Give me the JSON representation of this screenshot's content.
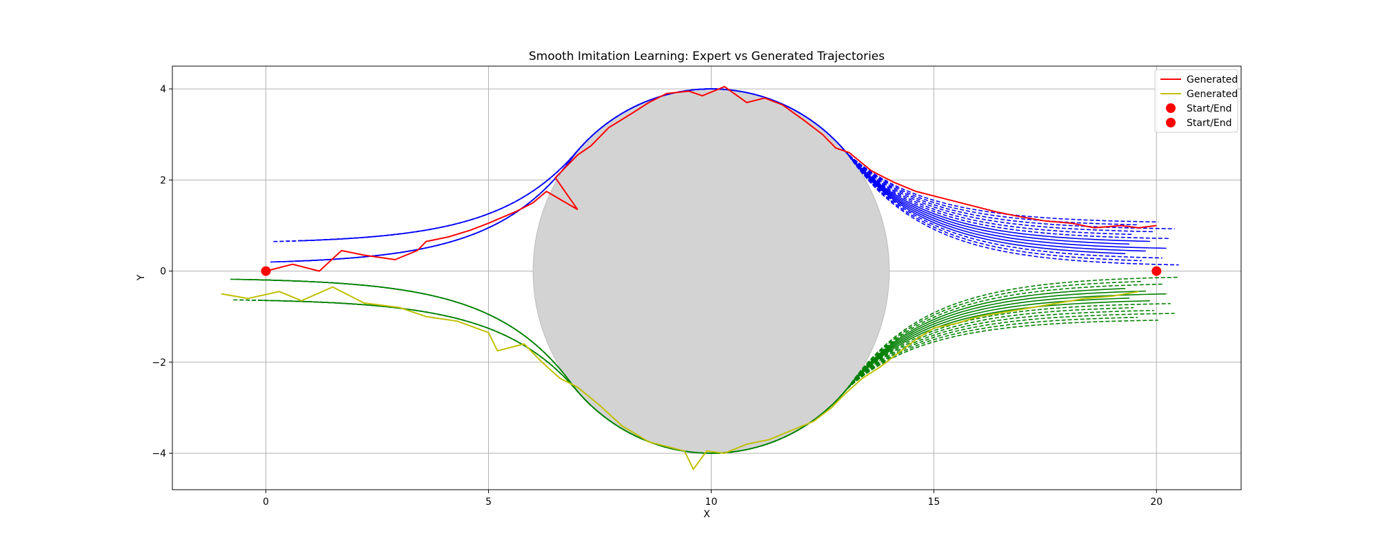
{
  "chart_data": {
    "type": "line",
    "title": "Smooth Imitation Learning: Expert vs Generated Trajectories",
    "xlabel": "X",
    "ylabel": "Y",
    "xlim": [
      -2.1,
      21.9
    ],
    "ylim": [
      -4.8,
      4.5
    ],
    "xticks": [
      0,
      5,
      10,
      15,
      20
    ],
    "yticks": [
      -4,
      -2,
      0,
      2,
      4
    ],
    "xtick_labels": [
      "0",
      "5",
      "10",
      "15",
      "20"
    ],
    "ytick_labels": [
      "−4",
      "−2",
      "0",
      "2",
      "4"
    ],
    "grid": true,
    "legend_position": "top-right",
    "legend": [
      {
        "label": "Generated",
        "kind": "line",
        "color": "#ff0000"
      },
      {
        "label": "Generated",
        "kind": "line",
        "color": "#bfbf00"
      },
      {
        "label": "Start/End",
        "kind": "marker",
        "color": "#ff0000"
      },
      {
        "label": "Start/End",
        "kind": "marker",
        "color": "#ff0000"
      }
    ],
    "obstacle": {
      "type": "circle",
      "center": [
        10,
        0
      ],
      "radius": 4,
      "color": "#d3d3d3"
    },
    "start_end_points": [
      [
        0,
        0
      ],
      [
        20,
        0
      ]
    ],
    "expert_upper": {
      "color": "#0000ff",
      "style": "dashed",
      "count": 14,
      "note_rendering": "ideal trajectories approaching the top of the obstacle"
    },
    "expert_lower": {
      "color": "#008000",
      "style": "dashed",
      "count": 14
    },
    "series": [
      {
        "name": "Generated",
        "color": "#ff0000",
        "x": [
          0.0,
          0.6,
          1.2,
          1.7,
          2.2,
          2.9,
          3.4,
          3.6,
          4.1,
          4.6,
          5.0,
          5.6,
          6.0,
          6.3,
          7.0,
          6.5,
          7.0,
          7.3,
          7.7,
          8.2,
          8.6,
          9.0,
          9.5,
          9.8,
          10.3,
          10.8,
          11.2,
          11.6,
          12.1,
          12.5,
          12.8,
          13.1,
          13.6,
          14.1,
          14.6,
          15.2,
          15.8,
          16.4,
          16.9,
          17.5,
          18.1,
          18.6,
          19.2,
          19.6,
          20.0
        ],
        "y": [
          0.0,
          0.15,
          0.0,
          0.45,
          0.35,
          0.25,
          0.45,
          0.65,
          0.75,
          0.9,
          1.05,
          1.3,
          1.5,
          1.75,
          1.35,
          2.05,
          2.55,
          2.75,
          3.15,
          3.45,
          3.7,
          3.9,
          3.95,
          3.85,
          4.05,
          3.7,
          3.8,
          3.65,
          3.3,
          3.0,
          2.7,
          2.6,
          2.2,
          1.95,
          1.75,
          1.6,
          1.45,
          1.3,
          1.2,
          1.1,
          1.05,
          0.95,
          1.0,
          0.95,
          1.0
        ]
      },
      {
        "name": "Generated",
        "color": "#bfbf00",
        "x": [
          -1.0,
          -0.4,
          0.3,
          0.8,
          1.5,
          2.2,
          3.0,
          3.6,
          4.3,
          5.0,
          5.2,
          5.8,
          6.2,
          6.6,
          7.0,
          7.5,
          8.0,
          8.6,
          9.0,
          9.4,
          9.6,
          9.9,
          10.3,
          10.8,
          11.3,
          11.8,
          12.3,
          12.7,
          13.0,
          13.4,
          13.8,
          14.2,
          14.6,
          15.0,
          15.5,
          16.0,
          16.6,
          17.2,
          17.8,
          18.4,
          19.0,
          19.6
        ],
        "y": [
          -0.5,
          -0.6,
          -0.45,
          -0.65,
          -0.35,
          -0.7,
          -0.8,
          -1.0,
          -1.1,
          -1.35,
          -1.75,
          -1.6,
          -2.0,
          -2.35,
          -2.55,
          -2.95,
          -3.4,
          -3.75,
          -3.85,
          -3.95,
          -4.35,
          -3.95,
          -4.0,
          -3.8,
          -3.7,
          -3.5,
          -3.3,
          -3.0,
          -2.7,
          -2.35,
          -2.1,
          -1.8,
          -1.5,
          -1.25,
          -1.15,
          -1.0,
          -0.9,
          -0.8,
          -0.7,
          -0.6,
          -0.55,
          -0.45
        ]
      }
    ]
  }
}
